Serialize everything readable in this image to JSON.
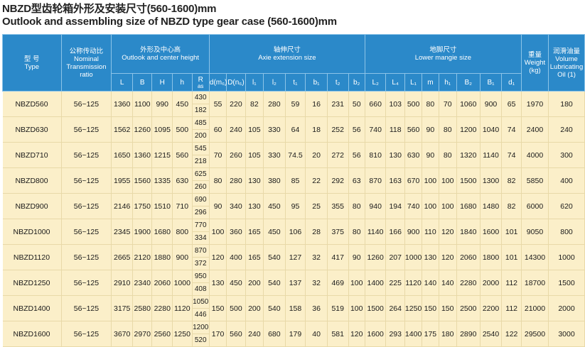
{
  "title_cn": "NBZD型齿轮箱外形及安装尺寸(560-1600)mm",
  "title_en": "Outlook and assembling size of NBZD type gear case (560-1600)mm",
  "header": {
    "type_cn": "型 号",
    "type_en": "Type",
    "ratio_cn": "公称传动比",
    "ratio_en": "Nominal Transmission ratio",
    "outlook_cn": "外形及中心高",
    "outlook_en": "Outlook and center height",
    "axie_cn": "轴伸尺寸",
    "axie_en": "Axie extension size",
    "lower_cn": "地脚尺寸",
    "lower_en": "Lower mangie size",
    "weight_cn": "重量",
    "weight_en": "Weight (kg)",
    "oil_cn": "润滑油量",
    "oil_en": "Volume Lubricating Oil (1)",
    "sub": [
      "L",
      "B",
      "H",
      "h",
      "R",
      "d(m₆)",
      "D(n₆)",
      "l₁",
      "l₂",
      "t₁",
      "b₁",
      "t₂",
      "b₂",
      "L₂",
      "L₄",
      "L₁",
      "m",
      "h₁",
      "B₂",
      "B₁",
      "d₁"
    ],
    "r_sub": "as"
  },
  "rows": [
    {
      "type": "NBZD560",
      "ratio": "56~125",
      "L": "1360",
      "B": "1100",
      "H": "990",
      "h": "450",
      "R": [
        "430",
        "182"
      ],
      "d": "55",
      "D": "220",
      "l1": "82",
      "l2": "280",
      "t1": "59",
      "b1": "16",
      "t2": "231",
      "b2": "50",
      "L2": "660",
      "L4": "103",
      "L1": "500",
      "m": "80",
      "h1": "70",
      "B2": "1060",
      "B1": "900",
      "d1": "65",
      "weight": "1970",
      "oil": "180"
    },
    {
      "type": "NBZD630",
      "ratio": "56~125",
      "L": "1562",
      "B": "1260",
      "H": "1095",
      "h": "500",
      "R": [
        "485",
        "200"
      ],
      "d": "60",
      "D": "240",
      "l1": "105",
      "l2": "330",
      "t1": "64",
      "b1": "18",
      "t2": "252",
      "b2": "56",
      "L2": "740",
      "L4": "118",
      "L1": "560",
      "m": "90",
      "h1": "80",
      "B2": "1200",
      "B1": "1040",
      "d1": "74",
      "weight": "2400",
      "oil": "240"
    },
    {
      "type": "NBZD710",
      "ratio": "56~125",
      "L": "1650",
      "B": "1360",
      "H": "1215",
      "h": "560",
      "R": [
        "545",
        "218"
      ],
      "d": "70",
      "D": "260",
      "l1": "105",
      "l2": "330",
      "t1": "74.5",
      "b1": "20",
      "t2": "272",
      "b2": "56",
      "L2": "810",
      "L4": "130",
      "L1": "630",
      "m": "90",
      "h1": "80",
      "B2": "1320",
      "B1": "1140",
      "d1": "74",
      "weight": "4000",
      "oil": "300"
    },
    {
      "type": "NBZD800",
      "ratio": "56~125",
      "L": "1955",
      "B": "1560",
      "H": "1335",
      "h": "630",
      "R": [
        "625",
        "260"
      ],
      "d": "80",
      "D": "280",
      "l1": "130",
      "l2": "380",
      "t1": "85",
      "b1": "22",
      "t2": "292",
      "b2": "63",
      "L2": "870",
      "L4": "163",
      "L1": "670",
      "m": "100",
      "h1": "100",
      "B2": "1500",
      "B1": "1300",
      "d1": "82",
      "weight": "5850",
      "oil": "400"
    },
    {
      "type": "NBZD900",
      "ratio": "56~125",
      "L": "2146",
      "B": "1750",
      "H": "1510",
      "h": "710",
      "R": [
        "690",
        "296"
      ],
      "d": "90",
      "D": "340",
      "l1": "130",
      "l2": "450",
      "t1": "95",
      "b1": "25",
      "t2": "355",
      "b2": "80",
      "L2": "940",
      "L4": "194",
      "L1": "740",
      "m": "100",
      "h1": "100",
      "B2": "1680",
      "B1": "1480",
      "d1": "82",
      "weight": "6000",
      "oil": "620"
    },
    {
      "type": "NBZD1000",
      "ratio": "56~125",
      "L": "2345",
      "B": "1900",
      "H": "1680",
      "h": "800",
      "R": [
        "770",
        "334"
      ],
      "d": "100",
      "D": "360",
      "l1": "165",
      "l2": "450",
      "t1": "106",
      "b1": "28",
      "t2": "375",
      "b2": "80",
      "L2": "1140",
      "L4": "166",
      "L1": "900",
      "m": "110",
      "h1": "120",
      "B2": "1840",
      "B1": "1600",
      "d1": "101",
      "weight": "9050",
      "oil": "800"
    },
    {
      "type": "NBZD1120",
      "ratio": "56~125",
      "L": "2665",
      "B": "2120",
      "H": "1880",
      "h": "900",
      "R": [
        "870",
        "372"
      ],
      "d": "120",
      "D": "400",
      "l1": "165",
      "l2": "540",
      "t1": "127",
      "b1": "32",
      "t2": "417",
      "b2": "90",
      "L2": "1260",
      "L4": "207",
      "L1": "1000",
      "m": "130",
      "h1": "120",
      "B2": "2060",
      "B1": "1800",
      "d1": "101",
      "weight": "14300",
      "oil": "1000"
    },
    {
      "type": "NBZD1250",
      "ratio": "56~125",
      "L": "2910",
      "B": "2340",
      "H": "2060",
      "h": "1000",
      "R": [
        "950",
        "408"
      ],
      "d": "130",
      "D": "450",
      "l1": "200",
      "l2": "540",
      "t1": "137",
      "b1": "32",
      "t2": "469",
      "b2": "100",
      "L2": "1400",
      "L4": "225",
      "L1": "1120",
      "m": "140",
      "h1": "140",
      "B2": "2280",
      "B1": "2000",
      "d1": "112",
      "weight": "18700",
      "oil": "1500"
    },
    {
      "type": "NBZD1400",
      "ratio": "56~125",
      "L": "3175",
      "B": "2580",
      "H": "2280",
      "h": "1120",
      "R": [
        "1050",
        "446"
      ],
      "d": "150",
      "D": "500",
      "l1": "200",
      "l2": "540",
      "t1": "158",
      "b1": "36",
      "t2": "519",
      "b2": "100",
      "L2": "1500",
      "L4": "264",
      "L1": "1250",
      "m": "150",
      "h1": "150",
      "B2": "2500",
      "B1": "2200",
      "d1": "112",
      "weight": "21000",
      "oil": "2000"
    },
    {
      "type": "NBZD1600",
      "ratio": "56~125",
      "L": "3670",
      "B": "2970",
      "H": "2560",
      "h": "1250",
      "R": [
        "1200",
        "520"
      ],
      "d": "170",
      "D": "560",
      "l1": "240",
      "l2": "680",
      "t1": "179",
      "b1": "40",
      "t2": "581",
      "b2": "120",
      "L2": "1600",
      "L4": "293",
      "L1": "1400",
      "m": "175",
      "h1": "180",
      "B2": "2890",
      "B1": "2540",
      "d1": "122",
      "weight": "29500",
      "oil": "3000"
    }
  ]
}
